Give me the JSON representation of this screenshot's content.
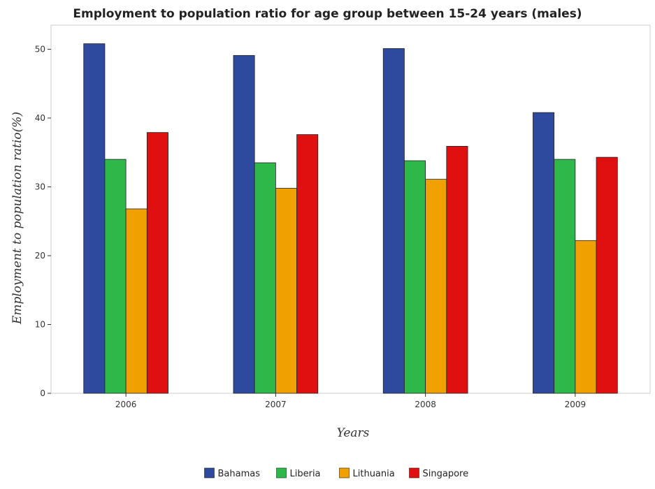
{
  "chart_data": {
    "type": "bar",
    "title": "Employment to population ratio for age group between 15-24 years (males)",
    "xlabel": "Years",
    "ylabel": "Employment to population ratio(%)",
    "categories": [
      "2006",
      "2007",
      "2008",
      "2009"
    ],
    "ylim": [
      0,
      53.5
    ],
    "yticks": [
      0,
      10,
      20,
      30,
      40,
      50
    ],
    "grid": false,
    "legend_position": "bottom",
    "series": [
      {
        "name": "Bahamas",
        "color": "#2e4a9e",
        "values": [
          50.8,
          49.1,
          50.1,
          40.8
        ]
      },
      {
        "name": "Liberia",
        "color": "#2eb84a",
        "values": [
          34.0,
          33.5,
          33.8,
          34.0
        ]
      },
      {
        "name": "Lithuania",
        "color": "#f0a000",
        "values": [
          26.8,
          29.8,
          31.1,
          22.2
        ]
      },
      {
        "name": "Singapore",
        "color": "#e01010",
        "values": [
          37.9,
          37.6,
          35.9,
          34.3
        ]
      }
    ]
  }
}
